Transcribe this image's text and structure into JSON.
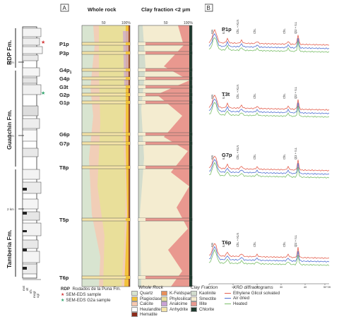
{
  "panels": {
    "a": "A",
    "b": "B"
  },
  "formations": [
    "RDP Fm.",
    "Guanchin Fm.",
    "Tamberia Fm."
  ],
  "depth_marks": [
    "6 km",
    "4 km",
    "2 km"
  ],
  "grain_labels": [
    "mst",
    "slt",
    "vfs",
    "mcgl",
    "cgl"
  ],
  "sample_labels": [
    "P1p",
    "P3p",
    "G4p1",
    "G4p",
    "G3t",
    "G2p",
    "G1p",
    "G6p",
    "G7p",
    "T8p",
    "T5p",
    "T6p"
  ],
  "column_titles": {
    "whole_rock": "Whole rock",
    "clay": "Clay fraction <2 μm"
  },
  "ticks": {
    "t50": "50",
    "t100": "100%"
  },
  "xrd_samples": [
    "P1p",
    "T3t",
    "G7p",
    "T6p"
  ],
  "peak_labels": {
    "sm": "Sm",
    "ill": "ILL",
    "chl": "ChL",
    "chl_kln": "ChL + KLN",
    "qtz_ill": "Qtz + ILL"
  },
  "xrd_axis_ticks": [
    "2",
    "10",
    "20",
    "30",
    "40",
    "50°2θ"
  ],
  "legend": {
    "rdp_key": "RDP",
    "rdp_text": "Rodados de la Puna Fm.",
    "sem1": "SEM-EDS sample",
    "sem2": "SEM-EDS G2a sample",
    "whole_rock_title": "Whole Rock",
    "whole_rock_items": [
      {
        "label": "Quartz",
        "color": "#d8e4d0"
      },
      {
        "label": "Plagioclase",
        "color": "#f2c23a"
      },
      {
        "label": "Calcite",
        "color": "#f7c8b0"
      },
      {
        "label": "Heulandite",
        "color": "#ffffff"
      },
      {
        "label": "Hematite",
        "color": "#8b2a1a"
      },
      {
        "label": "K-Feldspar",
        "color": "#e88f5a"
      },
      {
        "label": "Phylosilicates",
        "color": "#e9df9a"
      },
      {
        "label": "Analcime",
        "color": "#c9a2d6"
      },
      {
        "label": "Anhydrite",
        "color": "#f5e4a8"
      }
    ],
    "clay_title": "Clay Fraction",
    "clay_items": [
      {
        "label": "Kaolinite",
        "color": "#d2dccd"
      },
      {
        "label": "Smectite",
        "color": "#f4ecd0"
      },
      {
        "label": "Illite",
        "color": "#e9988f"
      },
      {
        "label": "Chlorite",
        "color": "#1f3a2e"
      }
    ],
    "xrd_title": "XRD diffractograms",
    "xrd_items": [
      {
        "label": "Ethylene Glicol solvated",
        "color": "#e4604f"
      },
      {
        "label": "Air dried",
        "color": "#4f6fd1"
      },
      {
        "label": "Heated",
        "color": "#7cbf6a"
      }
    ]
  },
  "colors": {
    "sem_red": "#d33a3a",
    "sem_green": "#2ea36a"
  }
}
